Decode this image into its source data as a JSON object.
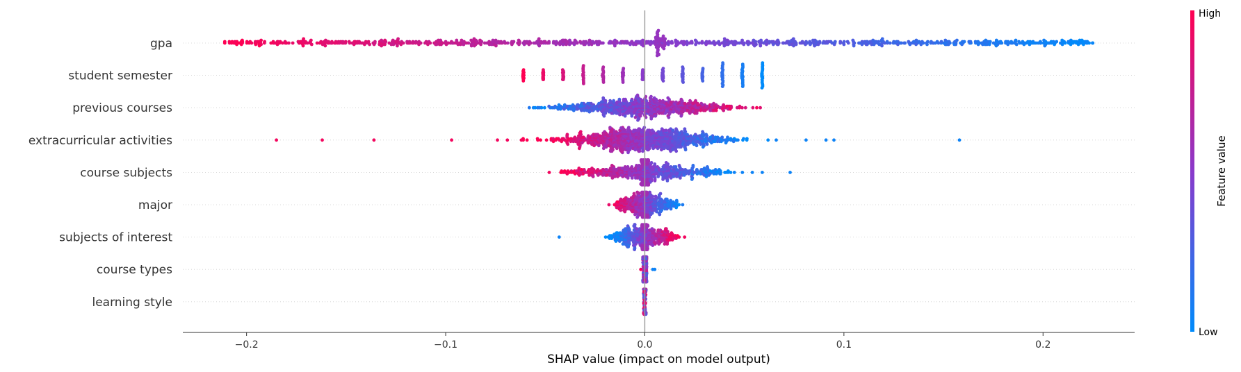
{
  "chart_data": {
    "type": "scatter",
    "subtype": "shap-beeswarm-summary",
    "xlabel": "SHAP value (impact on model output)",
    "xlim": [
      -0.232,
      0.246
    ],
    "xticks": [
      -0.2,
      -0.1,
      0.0,
      0.1,
      0.2
    ],
    "xtick_labels": [
      "−0.2",
      "−0.1",
      "0.0",
      "0.1",
      "0.2"
    ],
    "features": [
      {
        "name": "gpa",
        "min": -0.211,
        "max": 0.225
      },
      {
        "name": "student semester",
        "min": -0.061,
        "max": 0.059
      },
      {
        "name": "previous courses",
        "min": -0.059,
        "max": 0.058
      },
      {
        "name": "extracurricular activities",
        "min": -0.185,
        "max": 0.158
      },
      {
        "name": "course subjects",
        "min": -0.048,
        "max": 0.073
      },
      {
        "name": "major",
        "min": -0.018,
        "max": 0.019
      },
      {
        "name": "subjects of interest",
        "min": -0.043,
        "max": 0.02
      },
      {
        "name": "course types",
        "min": -0.002,
        "max": 0.005
      },
      {
        "name": "learning style",
        "min": -0.001,
        "max": 0.001
      }
    ],
    "colorbar": {
      "title": "Feature value",
      "high_label": "High",
      "low_label": "Low",
      "high_color": "#ff0052",
      "low_color": "#008bfb"
    },
    "zero_line": true,
    "row_gridlines": true
  }
}
